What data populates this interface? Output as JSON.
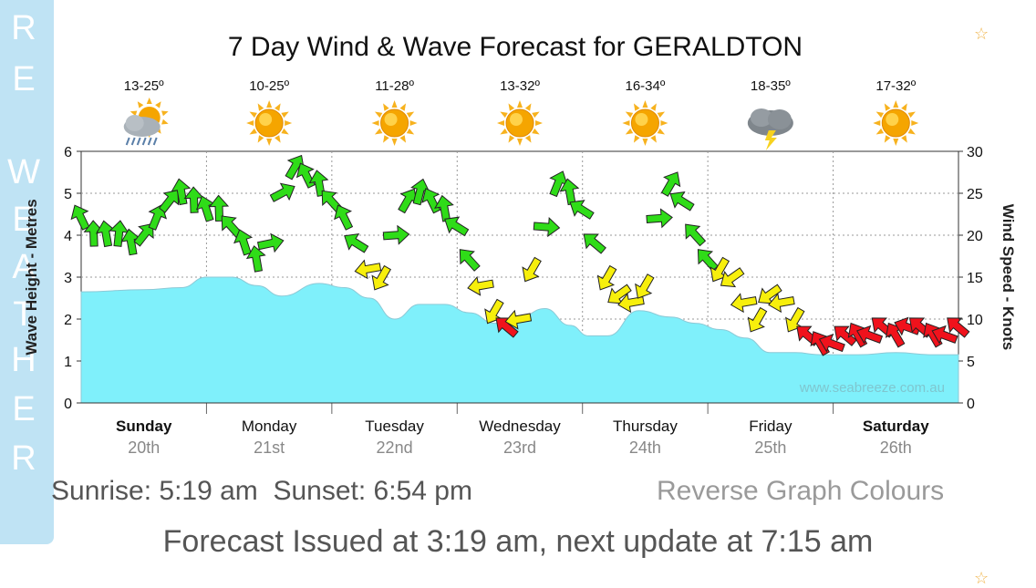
{
  "side_tab": {
    "letters": [
      "R",
      "E",
      "W",
      "E",
      "A",
      "T",
      "H",
      "E",
      "R"
    ]
  },
  "chart_data": {
    "type": "line",
    "title": "7 Day Wind & Wave Forecast for GERALDTON",
    "days": [
      {
        "name": "Sunday",
        "date": "20th",
        "bold": true,
        "temp": "13-25º",
        "icon": "rain-cloud-icon"
      },
      {
        "name": "Monday",
        "date": "21st",
        "bold": false,
        "temp": "10-25º",
        "icon": "sun-icon"
      },
      {
        "name": "Tuesday",
        "date": "22nd",
        "bold": false,
        "temp": "11-28º",
        "icon": "sun-icon"
      },
      {
        "name": "Wednesday",
        "date": "23rd",
        "bold": false,
        "temp": "13-32º",
        "icon": "sun-icon"
      },
      {
        "name": "Thursday",
        "date": "24th",
        "bold": false,
        "temp": "16-34º",
        "icon": "sun-icon"
      },
      {
        "name": "Friday",
        "date": "25th",
        "bold": false,
        "temp": "18-35º",
        "icon": "storm-cloud-icon"
      },
      {
        "name": "Saturday",
        "date": "26th",
        "bold": true,
        "temp": "17-32º",
        "icon": "sun-icon"
      }
    ],
    "y_left": {
      "label": "Wave Height - Metres",
      "min": 0,
      "max": 6,
      "ticks": [
        "0",
        "1",
        "2",
        "3",
        "4",
        "5",
        "6"
      ]
    },
    "y_right": {
      "label": "Wind Speed - Knots",
      "min": 0,
      "max": 30,
      "ticks": [
        "0",
        "5",
        "10",
        "15",
        "20",
        "25",
        "30"
      ]
    },
    "x_range_days": [
      0,
      7
    ],
    "watermark": "www.seabreeze.com.au",
    "wave_height": {
      "name": "Wave Height (m)",
      "color": "#7ff0fb",
      "x": [
        0,
        0.5,
        0.8,
        1.0,
        1.2,
        1.4,
        1.6,
        1.9,
        2.1,
        2.3,
        2.5,
        2.7,
        2.9,
        3.1,
        3.3,
        3.5,
        3.7,
        3.9,
        4.05,
        4.2,
        4.45,
        4.7,
        4.9,
        5.1,
        5.3,
        5.5,
        5.7,
        5.9,
        6.2,
        6.5,
        6.8,
        7.0
      ],
      "values": [
        2.65,
        2.7,
        2.75,
        3.0,
        3.0,
        2.8,
        2.55,
        2.85,
        2.75,
        2.5,
        2.0,
        2.35,
        2.35,
        2.15,
        1.9,
        2.05,
        2.25,
        1.85,
        1.6,
        1.6,
        2.2,
        2.05,
        1.9,
        1.75,
        1.55,
        1.2,
        1.2,
        1.15,
        1.15,
        1.2,
        1.15,
        1.15
      ]
    },
    "wind": {
      "name": "Wind Speed (knots)",
      "x": [
        0.0,
        0.1,
        0.2,
        0.3,
        0.4,
        0.5,
        0.6,
        0.7,
        0.8,
        0.9,
        1.0,
        1.1,
        1.2,
        1.3,
        1.4,
        1.5,
        1.6,
        1.7,
        1.8,
        1.9,
        2.0,
        2.1,
        2.2,
        2.3,
        2.4,
        2.5,
        2.6,
        2.7,
        2.8,
        2.9,
        3.0,
        3.1,
        3.2,
        3.3,
        3.4,
        3.5,
        3.6,
        3.7,
        3.8,
        3.9,
        4.0,
        4.1,
        4.2,
        4.3,
        4.4,
        4.5,
        4.6,
        4.7,
        4.8,
        4.9,
        5.0,
        5.1,
        5.2,
        5.3,
        5.4,
        5.5,
        5.6,
        5.7,
        5.8,
        5.9,
        6.0,
        6.1,
        6.2,
        6.3,
        6.4,
        6.5,
        6.6,
        6.7,
        6.8,
        6.9,
        7.0
      ],
      "values": [
        22,
        20,
        20,
        20,
        19,
        20,
        22,
        24,
        25,
        24,
        23,
        23,
        21,
        19,
        17,
        19,
        25,
        28,
        27,
        26,
        24,
        22,
        19,
        16,
        15,
        20,
        24,
        25,
        24,
        23,
        21,
        17,
        14,
        11,
        9,
        10,
        16,
        21,
        26,
        25,
        23,
        19,
        15,
        13,
        12,
        14,
        22,
        26,
        24,
        20,
        17,
        16,
        15,
        12,
        10,
        13,
        12,
        10,
        8,
        7,
        7,
        8,
        8,
        8,
        9,
        8,
        9,
        9,
        8,
        8,
        9
      ],
      "colors": {
        "green": "#2fdc18",
        "yellow": "#f7ef0c",
        "red": "#f0121c"
      }
    }
  },
  "sun_times": {
    "sunrise": "Sunrise: 5:19 am",
    "sunset": "Sunset: 6:54 pm"
  },
  "reverse_link": "Reverse Graph Colours",
  "forecast_issued": "Forecast Issued at 3:19 am, next update at 7:15 am"
}
